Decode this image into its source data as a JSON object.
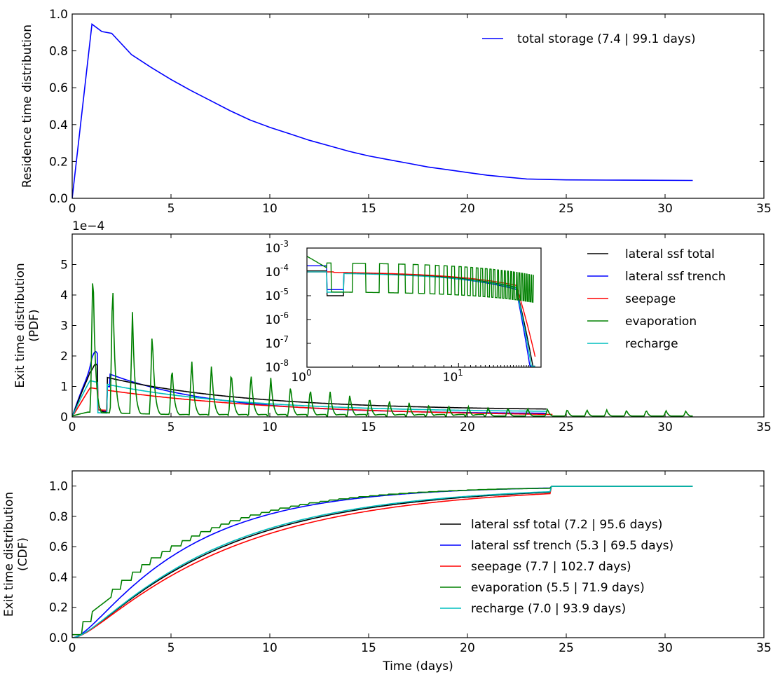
{
  "chart_data": [
    {
      "id": "residence",
      "type": "line",
      "ylabel": "Residence time distribution",
      "xlabel": "",
      "xlim": [
        0,
        35
      ],
      "ylim": [
        0,
        1.0
      ],
      "xticks": [
        "0",
        "5",
        "10",
        "15",
        "20",
        "25",
        "30",
        "35"
      ],
      "yticks": [
        "0.0",
        "0.2",
        "0.4",
        "0.6",
        "0.8",
        "1.0"
      ],
      "legend_position": "top-right",
      "series": [
        {
          "name": "total storage   (7.4 | 99.1 days)",
          "color": "#0000ff",
          "x": [
            0,
            1.0,
            1.5,
            2.0,
            3.0,
            4.0,
            5.0,
            6.0,
            7.0,
            8.0,
            9.0,
            10.0,
            11.0,
            12.0,
            13.0,
            14.0,
            15.0,
            16.0,
            17.0,
            18.0,
            19.0,
            20.0,
            21.0,
            22.0,
            23.0,
            24.2,
            25.0,
            27.0,
            29.0,
            31.4
          ],
          "y": [
            0.0,
            0.945,
            0.905,
            0.895,
            0.78,
            0.71,
            0.645,
            0.585,
            0.53,
            0.475,
            0.425,
            0.385,
            0.35,
            0.315,
            0.285,
            0.255,
            0.23,
            0.21,
            0.19,
            0.17,
            0.155,
            0.14,
            0.125,
            0.115,
            0.105,
            0.102,
            0.1,
            0.099,
            0.098,
            0.097
          ]
        }
      ]
    },
    {
      "id": "pdf",
      "type": "line",
      "ylabel": [
        "Exit time distribution",
        "(PDF)"
      ],
      "xlabel": "",
      "y_multiplier": "1e−4",
      "xlim": [
        0,
        35
      ],
      "ylim": [
        0,
        6
      ],
      "xticks": [
        "0",
        "5",
        "10",
        "15",
        "20",
        "25",
        "30",
        "35"
      ],
      "yticks": [
        "0",
        "1",
        "2",
        "3",
        "4",
        "5"
      ],
      "legend_position": "top-right",
      "series": [
        {
          "name": "lateral ssf total",
          "color": "#000000"
        },
        {
          "name": "lateral ssf trench",
          "color": "#0000ff"
        },
        {
          "name": "seepage",
          "color": "#ff0000"
        },
        {
          "name": "evaporation",
          "color": "#008000"
        },
        {
          "name": "recharge",
          "color": "#00bfbf"
        }
      ],
      "inset": {
        "type": "line",
        "x_scale": "log",
        "y_scale": "log",
        "xlim": [
          1,
          35
        ],
        "ylim": [
          1e-08,
          0.001
        ],
        "xticks": [
          {
            "mant": "10",
            "exp": "0"
          },
          {
            "mant": "10",
            "exp": "1"
          }
        ],
        "yticks": [
          {
            "mant": "10",
            "exp": "-3"
          },
          {
            "mant": "10",
            "exp": "-4"
          },
          {
            "mant": "10",
            "exp": "-5"
          },
          {
            "mant": "10",
            "exp": "-6"
          },
          {
            "mant": "10",
            "exp": "-7"
          },
          {
            "mant": "10",
            "exp": "-8"
          }
        ]
      }
    },
    {
      "id": "cdf",
      "type": "line",
      "ylabel": [
        "Exit time distribution",
        "(CDF)"
      ],
      "xlabel": "Time (days)",
      "xlim": [
        0,
        35
      ],
      "ylim": [
        0,
        1.1
      ],
      "xticks": [
        "0",
        "5",
        "10",
        "15",
        "20",
        "25",
        "30",
        "35"
      ],
      "yticks": [
        "0.0",
        "0.2",
        "0.4",
        "0.6",
        "0.8",
        "1.0"
      ],
      "legend_position": "lower-right",
      "series": [
        {
          "name": "lateral ssf total    (7.2 | 95.6 days)",
          "color": "#000000",
          "tau": 7.2,
          "shape": "exp"
        },
        {
          "name": "lateral ssf trench  (5.3 | 69.5 days)",
          "color": "#0000ff",
          "tau": 5.3,
          "shape": "exp"
        },
        {
          "name": "seepage (7.7 | 102.7 days)",
          "color": "#ff0000",
          "tau": 7.7,
          "shape": "exp"
        },
        {
          "name": "evaporation (5.5 | 71.9 days)",
          "color": "#008000",
          "tau": 5.5,
          "shape": "stair"
        },
        {
          "name": "recharge    (7.0 | 93.9 days)",
          "color": "#00bfbf",
          "tau": 7.0,
          "shape": "exp"
        }
      ]
    }
  ]
}
